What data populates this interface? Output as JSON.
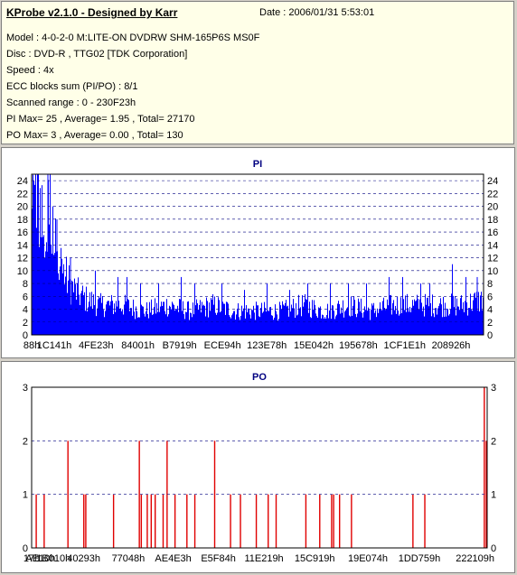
{
  "header": {
    "title": "KProbe v2.1.0 - Designed by Karr",
    "date": "Date : 2006/01/31 5:53:01",
    "lines": [
      "Model : 4-0-2-0 M:LITE-ON DVDRW SHM-165P6S MS0F",
      "Disc : DVD-R , TTG02 [TDK Corporation]",
      "Speed : 4x",
      "ECC blocks sum (PI/PO) : 8/1",
      "Scanned range : 0 - 230F23h",
      "PI Max= 25 , Average= 1.95 , Total= 27170",
      "PO Max= 3 , Average= 0.00 , Total= 130"
    ]
  },
  "colors": {
    "pi": "#0000ff",
    "po": "#e00000",
    "title": "#000080",
    "grid": "#000080"
  },
  "chart_data": [
    {
      "type": "bar",
      "title": "PI",
      "ylim": [
        0,
        25
      ],
      "yticks": [
        0,
        2,
        4,
        6,
        8,
        10,
        12,
        14,
        16,
        18,
        20,
        22,
        24
      ],
      "xlim": [
        0,
        2297635
      ],
      "xticks": [
        {
          "label": "88h",
          "value": 136
        },
        {
          "label": "1C141h",
          "value": 115009
        },
        {
          "label": "4FE23h",
          "value": 327203
        },
        {
          "label": "84001h",
          "value": 540673
        },
        {
          "label": "B7919h",
          "value": 751897
        },
        {
          "label": "ECE94h",
          "value": 970388
        },
        {
          "label": "123E78h",
          "value": 1195640
        },
        {
          "label": "15E042h",
          "value": 1433666
        },
        {
          "label": "195678h",
          "value": 1660536
        },
        {
          "label": "1CF1E1h",
          "value": 1896929
        },
        {
          "label": "208926h",
          "value": 2132262
        }
      ],
      "description_values": "spiky PI distribution: high (10-25) near start, settling to ~3-6 with spikes to ~11",
      "profile": [
        [
          0.0,
          18
        ],
        [
          0.01,
          24
        ],
        [
          0.02,
          20
        ],
        [
          0.03,
          14
        ],
        [
          0.04,
          24
        ],
        [
          0.05,
          15
        ],
        [
          0.06,
          12
        ],
        [
          0.08,
          9
        ],
        [
          0.1,
          7
        ],
        [
          0.12,
          6
        ],
        [
          0.15,
          5
        ],
        [
          0.2,
          5
        ],
        [
          0.25,
          4
        ],
        [
          0.3,
          5
        ],
        [
          0.35,
          4
        ],
        [
          0.4,
          5
        ],
        [
          0.45,
          4
        ],
        [
          0.5,
          4
        ],
        [
          0.55,
          4
        ],
        [
          0.6,
          5
        ],
        [
          0.65,
          4
        ],
        [
          0.7,
          5
        ],
        [
          0.75,
          4
        ],
        [
          0.8,
          5
        ],
        [
          0.85,
          5
        ],
        [
          0.9,
          5
        ],
        [
          0.95,
          5
        ],
        [
          1.0,
          6
        ]
      ],
      "spikes": [
        [
          0.004,
          24
        ],
        [
          0.012,
          23
        ],
        [
          0.035,
          25
        ],
        [
          0.046,
          20
        ],
        [
          0.055,
          18
        ],
        [
          0.085,
          12
        ],
        [
          0.14,
          10
        ],
        [
          0.19,
          9
        ],
        [
          0.21,
          9
        ],
        [
          0.24,
          8
        ],
        [
          0.28,
          8
        ],
        [
          0.33,
          9
        ],
        [
          0.36,
          8
        ],
        [
          0.42,
          8
        ],
        [
          0.47,
          7
        ],
        [
          0.52,
          8
        ],
        [
          0.57,
          7
        ],
        [
          0.61,
          8
        ],
        [
          0.66,
          8
        ],
        [
          0.7,
          8
        ],
        [
          0.74,
          8
        ],
        [
          0.79,
          9
        ],
        [
          0.82,
          9
        ],
        [
          0.86,
          8
        ],
        [
          0.88,
          8
        ],
        [
          0.93,
          11
        ],
        [
          0.96,
          9
        ],
        [
          0.985,
          9
        ]
      ]
    },
    {
      "type": "bar",
      "title": "PO",
      "ylim": [
        0,
        3
      ],
      "yticks": [
        0,
        1,
        2,
        3
      ],
      "xlim": [
        0,
        2297635
      ],
      "xticks": [
        {
          "label": "17h",
          "value": 23
        },
        {
          "label": "AE10h",
          "value": 44560
        },
        {
          "label": "1B010h",
          "value": 110608
        },
        {
          "label": "40293h",
          "value": 262803
        },
        {
          "label": "77048h",
          "value": 487496
        },
        {
          "label": "AE4E3h",
          "value": 713955
        },
        {
          "label": "E5F84h",
          "value": 941956
        },
        {
          "label": "11E219h",
          "value": 1171993
        },
        {
          "label": "15C919h",
          "value": 1427737
        },
        {
          "label": "19E074h",
          "value": 1695860
        },
        {
          "label": "1DD759h",
          "value": 1955673
        },
        {
          "label": "222109h",
          "value": 2236681
        }
      ],
      "events": [
        [
          0.02,
          1
        ],
        [
          0.06,
          1
        ],
        [
          0.18,
          2
        ],
        [
          0.26,
          1
        ],
        [
          0.27,
          1
        ],
        [
          0.41,
          1
        ],
        [
          0.54,
          2
        ],
        [
          0.55,
          1
        ],
        [
          0.58,
          1
        ],
        [
          0.6,
          1
        ],
        [
          0.62,
          1
        ],
        [
          0.66,
          1
        ],
        [
          0.68,
          2
        ],
        [
          0.72,
          1
        ],
        [
          0.78,
          1
        ],
        [
          0.82,
          1
        ],
        [
          0.92,
          2
        ],
        [
          1.0,
          1
        ],
        [
          1.05,
          1
        ],
        [
          1.13,
          1
        ],
        [
          1.19,
          1
        ],
        [
          1.23,
          1
        ],
        [
          1.38,
          1
        ],
        [
          1.45,
          1
        ],
        [
          1.51,
          1
        ],
        [
          1.52,
          1
        ],
        [
          1.55,
          1
        ],
        [
          1.61,
          1
        ],
        [
          1.92,
          1
        ],
        [
          1.98,
          1
        ],
        [
          2.28,
          3
        ],
        [
          2.29,
          2
        ]
      ]
    }
  ]
}
